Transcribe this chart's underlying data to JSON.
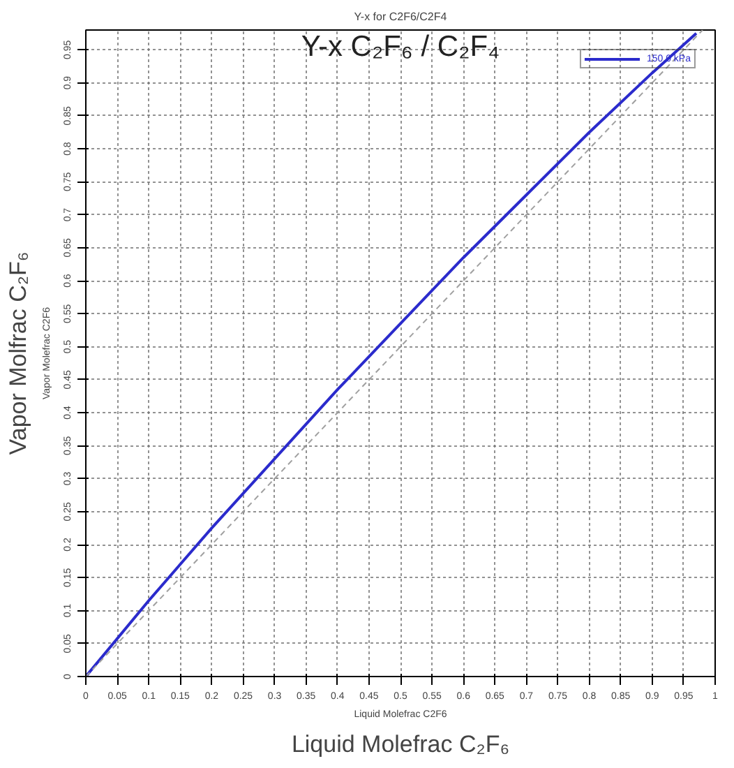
{
  "chart_data": {
    "type": "line",
    "title": "Y-x for C2F6/C2F4",
    "xlabel": "Liquid Molefrac C2F6",
    "ylabel": "Vapor Molefrac C2F6",
    "annotations": [
      "Y-x C₂F₆ / C₂F₄",
      "Vapor Molfrac C₂F₆",
      "Liquid Molefrac C₂F₆"
    ],
    "x": [
      0,
      0.1,
      0.2,
      0.3,
      0.4,
      0.5,
      0.6,
      0.7,
      0.8,
      0.9,
      0.97
    ],
    "series": [
      {
        "name": "150.0 kPa",
        "color": "#2b2bcc",
        "line_style": "solid",
        "values": [
          0,
          0.115,
          0.225,
          0.33,
          0.435,
          0.535,
          0.635,
          0.73,
          0.825,
          0.915,
          0.975
        ]
      },
      {
        "color": "#a0a0a0",
        "line_style": "dashed",
        "x": [
          0,
          0.98
        ],
        "values": [
          0,
          0.98
        ]
      }
    ],
    "xlim": [
      0,
      1
    ],
    "ylim": [
      0,
      0.98
    ],
    "xticks": [
      0,
      0.05,
      0.1,
      0.15,
      0.2,
      0.25,
      0.3,
      0.35,
      0.4,
      0.45,
      0.5,
      0.55,
      0.6,
      0.65,
      0.7,
      0.75,
      0.8,
      0.85,
      0.9,
      0.95,
      1
    ],
    "yticks": [
      0,
      0.05,
      0.1,
      0.15,
      0.2,
      0.25,
      0.3,
      0.35,
      0.4,
      0.45,
      0.5,
      0.55,
      0.6,
      0.65,
      0.7,
      0.75,
      0.8,
      0.85,
      0.9,
      0.95
    ],
    "grid": true,
    "legend": "top right",
    "marker": "none"
  }
}
